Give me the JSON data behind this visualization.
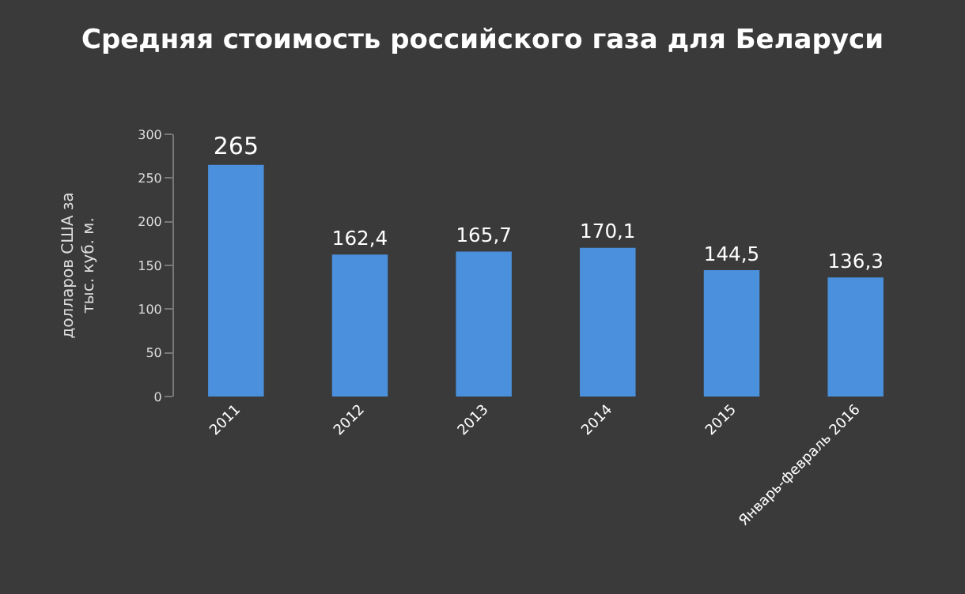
{
  "chart_data": {
    "type": "bar",
    "title": "Средняя стоимость российского газа для Беларуси",
    "ylabel": "долларов США за\nтыс. куб. м.",
    "categories": [
      "2011",
      "2012",
      "2013",
      "2014",
      "2015",
      "Январь-февраль 2016"
    ],
    "values": [
      265,
      162.4,
      165.7,
      170.1,
      144.5,
      136.3
    ],
    "value_labels": [
      "265",
      "162,4",
      "165,7",
      "170,1",
      "144,5",
      "136,3"
    ],
    "color": "#4a90dc",
    "ylim": [
      0,
      300
    ],
    "yticks": [
      0,
      50,
      100,
      150,
      200,
      250,
      300
    ],
    "grid": false
  }
}
